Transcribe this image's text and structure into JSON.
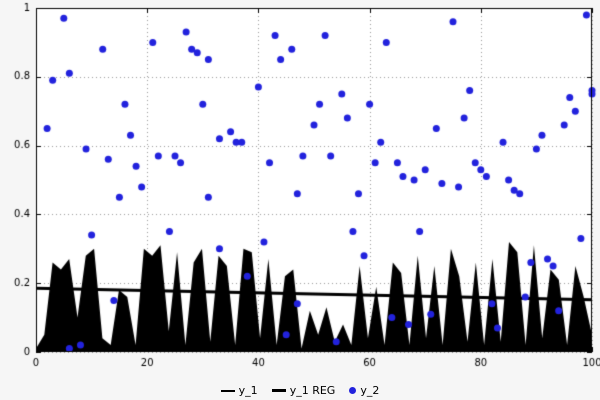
{
  "colors": {
    "plot_background": "#ffffff",
    "page_background": "#f6f6f6",
    "grid": "#999999",
    "axis": "#000000",
    "area_series": "#000000",
    "regression_line": "#000000",
    "scatter_series": "#2222dd"
  },
  "chart_data": {
    "type": "mixed",
    "title": "",
    "xlabel": "",
    "ylabel": "",
    "xlim": [
      0,
      100
    ],
    "ylim": [
      0,
      1
    ],
    "x_ticks": [
      0,
      20,
      40,
      60,
      80,
      100
    ],
    "x_tick_labels": [
      "0",
      "20",
      "40",
      "60",
      "80",
      "100"
    ],
    "y_ticks": [
      0,
      0.2,
      0.4,
      0.6,
      0.8,
      1
    ],
    "y_tick_labels": [
      "0",
      "0.2",
      "0.4",
      "0.6",
      "0.8",
      "1"
    ],
    "grid": true,
    "legend_position": "bottom-center",
    "series": [
      {
        "name": "y_1",
        "type": "area",
        "color": "#000000",
        "x_range": [
          0,
          100
        ],
        "values": [
          0.01,
          0.05,
          0.26,
          0.24,
          0.27,
          0.1,
          0.28,
          0.3,
          0.04,
          0.02,
          0.18,
          0.16,
          0.02,
          0.3,
          0.28,
          0.31,
          0.06,
          0.29,
          0.02,
          0.26,
          0.3,
          0.03,
          0.28,
          0.25,
          0.02,
          0.3,
          0.29,
          0.04,
          0.27,
          0.02,
          0.22,
          0.24,
          0.01,
          0.12,
          0.05,
          0.13,
          0.03,
          0.08,
          0.02,
          0.25,
          0.04,
          0.19,
          0.02,
          0.26,
          0.23,
          0.02,
          0.28,
          0.04,
          0.25,
          0.02,
          0.3,
          0.22,
          0.03,
          0.26,
          0.02,
          0.27,
          0.03,
          0.32,
          0.29,
          0.02,
          0.31,
          0.04,
          0.24,
          0.21,
          0.02,
          0.25,
          0.16,
          0.05
        ]
      },
      {
        "name": "y_1 REG",
        "type": "line",
        "color": "#000000",
        "line_width": 3,
        "points": [
          [
            0,
            0.185
          ],
          [
            100,
            0.152
          ]
        ]
      },
      {
        "name": "y_2",
        "type": "scatter",
        "color": "#2222dd",
        "point_radius": 3.5,
        "points": [
          [
            2,
            0.65
          ],
          [
            3,
            0.79
          ],
          [
            5,
            0.97
          ],
          [
            6,
            0.81
          ],
          [
            6,
            0.01
          ],
          [
            8,
            0.02
          ],
          [
            9,
            0.59
          ],
          [
            10,
            0.34
          ],
          [
            12,
            0.88
          ],
          [
            13,
            0.56
          ],
          [
            14,
            0.15
          ],
          [
            15,
            0.45
          ],
          [
            16,
            0.72
          ],
          [
            17,
            0.63
          ],
          [
            18,
            0.54
          ],
          [
            19,
            0.48
          ],
          [
            21,
            0.9
          ],
          [
            22,
            0.57
          ],
          [
            24,
            0.35
          ],
          [
            25,
            0.57
          ],
          [
            26,
            0.55
          ],
          [
            27,
            0.93
          ],
          [
            28,
            0.88
          ],
          [
            29,
            0.87
          ],
          [
            30,
            0.72
          ],
          [
            31,
            0.85
          ],
          [
            31,
            0.45
          ],
          [
            33,
            0.62
          ],
          [
            33,
            0.3
          ],
          [
            35,
            0.64
          ],
          [
            36,
            0.61
          ],
          [
            37,
            0.61
          ],
          [
            38,
            0.22
          ],
          [
            40,
            0.77
          ],
          [
            41,
            0.32
          ],
          [
            42,
            0.55
          ],
          [
            43,
            0.92
          ],
          [
            44,
            0.85
          ],
          [
            45,
            0.05
          ],
          [
            46,
            0.88
          ],
          [
            47,
            0.46
          ],
          [
            47,
            0.14
          ],
          [
            48,
            0.57
          ],
          [
            50,
            0.66
          ],
          [
            51,
            0.72
          ],
          [
            52,
            0.92
          ],
          [
            53,
            0.57
          ],
          [
            54,
            0.03
          ],
          [
            55,
            0.75
          ],
          [
            56,
            0.68
          ],
          [
            57,
            0.35
          ],
          [
            58,
            0.46
          ],
          [
            59,
            0.28
          ],
          [
            60,
            0.72
          ],
          [
            61,
            0.55
          ],
          [
            62,
            0.61
          ],
          [
            63,
            0.9
          ],
          [
            64,
            0.1
          ],
          [
            65,
            0.55
          ],
          [
            66,
            0.51
          ],
          [
            67,
            0.08
          ],
          [
            68,
            0.5
          ],
          [
            69,
            0.35
          ],
          [
            70,
            0.53
          ],
          [
            71,
            0.11
          ],
          [
            72,
            0.65
          ],
          [
            73,
            0.49
          ],
          [
            75,
            0.96
          ],
          [
            76,
            0.48
          ],
          [
            77,
            0.68
          ],
          [
            78,
            0.76
          ],
          [
            79,
            0.55
          ],
          [
            80,
            0.53
          ],
          [
            81,
            0.51
          ],
          [
            82,
            0.14
          ],
          [
            83,
            0.07
          ],
          [
            84,
            0.61
          ],
          [
            85,
            0.5
          ],
          [
            86,
            0.47
          ],
          [
            87,
            0.46
          ],
          [
            88,
            0.16
          ],
          [
            89,
            0.26
          ],
          [
            90,
            0.59
          ],
          [
            91,
            0.63
          ],
          [
            92,
            0.27
          ],
          [
            93,
            0.25
          ],
          [
            94,
            0.12
          ],
          [
            95,
            0.66
          ],
          [
            96,
            0.74
          ],
          [
            97,
            0.7
          ],
          [
            98,
            0.33
          ],
          [
            99,
            0.98
          ],
          [
            100,
            0.76
          ],
          [
            100,
            0.75
          ]
        ]
      }
    ]
  },
  "legend": {
    "items": [
      {
        "label": "y_1"
      },
      {
        "label": "y_1 REG"
      },
      {
        "label": "y_2"
      }
    ]
  }
}
